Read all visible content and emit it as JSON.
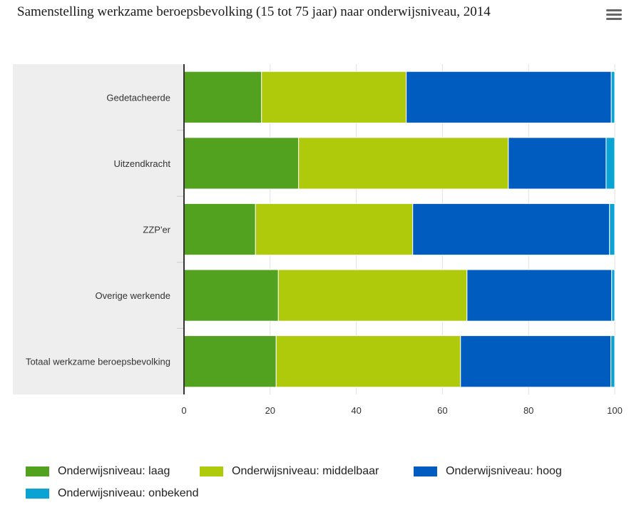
{
  "chart_data": {
    "type": "bar",
    "orientation": "horizontal",
    "stacked": true,
    "title": "Samenstelling werkzame beroepsbevolking (15 tot 75 jaar) naar onderwijsniveau, 2014",
    "categories": [
      "Gedetacheerde",
      "Uitzendkracht",
      "ZZP'er",
      "Overige werkende",
      "Totaal werkzame beroepsbevolking"
    ],
    "series": [
      {
        "name": "Onderwijsniveau: laag",
        "color": "#52a21f",
        "values": [
          18,
          26.6,
          16.6,
          21.9,
          21.4
        ]
      },
      {
        "name": "Onderwijsniveau: middelbaar",
        "color": "#afca0b",
        "values": [
          33.6,
          48.7,
          36.5,
          43.8,
          42.8
        ]
      },
      {
        "name": "Onderwijsniveau: hoog",
        "color": "#005cbf",
        "values": [
          47.6,
          22.7,
          45.7,
          33.6,
          34.9
        ]
      },
      {
        "name": "Onderwijsniveau: onbekend",
        "color": "#0ba2d4",
        "values": [
          0.8,
          2,
          1.2,
          0.7,
          0.9
        ]
      }
    ],
    "xlim": [
      0,
      100
    ],
    "xticks": [
      "0",
      "20",
      "40",
      "60",
      "80",
      "100"
    ],
    "xlabel": "",
    "ylabel": "",
    "grid": true,
    "legend_position": "bottom"
  },
  "menu_icon": "hamburger-menu-icon"
}
